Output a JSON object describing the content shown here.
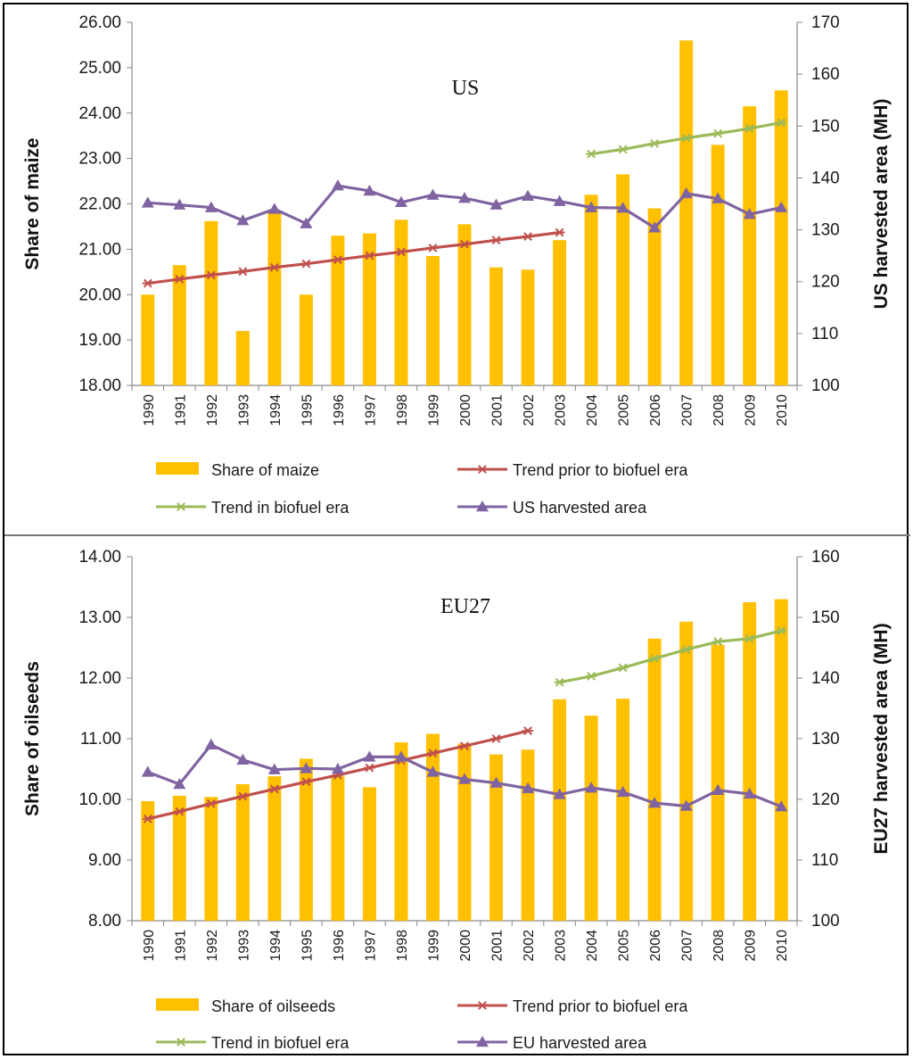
{
  "chart_data": [
    {
      "type": "bar+line",
      "label": "US",
      "categories": [
        "1990",
        "1991",
        "1992",
        "1993",
        "1994",
        "1995",
        "1996",
        "1997",
        "1998",
        "1999",
        "2000",
        "2001",
        "2002",
        "2003",
        "2004",
        "2005",
        "2006",
        "2007",
        "2008",
        "2009",
        "2010"
      ],
      "ylabel": "Share of maize",
      "y2label": "US harvested area (MH)",
      "ylim": [
        18,
        26
      ],
      "y2lim": [
        100,
        170
      ],
      "yticks": [
        "18.00",
        "19.00",
        "20.00",
        "21.00",
        "22.00",
        "23.00",
        "24.00",
        "25.00",
        "26.00"
      ],
      "y2ticks": [
        "100",
        "110",
        "120",
        "130",
        "140",
        "150",
        "160",
        "170"
      ],
      "series": [
        {
          "name": "Share of maize",
          "type": "bar",
          "axis": "left",
          "color": "#FFC000",
          "values": [
            20.0,
            20.65,
            21.62,
            19.2,
            21.82,
            20.0,
            21.3,
            21.35,
            21.65,
            20.85,
            21.55,
            20.6,
            20.55,
            21.2,
            22.2,
            22.65,
            21.9,
            25.6,
            23.3,
            24.15,
            24.5
          ]
        },
        {
          "name": "Trend prior to biofuel era",
          "type": "line",
          "marker": "asterisk",
          "axis": "left",
          "color": "#C0504D",
          "values": [
            20.25,
            20.34,
            20.43,
            20.51,
            20.6,
            20.68,
            20.77,
            20.86,
            20.94,
            21.03,
            21.11,
            21.2,
            21.28,
            21.37,
            null,
            null,
            null,
            null,
            null,
            null,
            null
          ]
        },
        {
          "name": "Trend in biofuel era",
          "type": "line",
          "marker": "asterisk",
          "axis": "left",
          "color": "#9BBB59",
          "values": [
            null,
            null,
            null,
            null,
            null,
            null,
            null,
            null,
            null,
            null,
            null,
            null,
            null,
            null,
            23.1,
            23.2,
            23.33,
            23.45,
            23.55,
            23.66,
            23.79
          ]
        },
        {
          "name": "US harvested area",
          "type": "line",
          "marker": "triangle",
          "axis": "right",
          "color": "#8064A2",
          "values": [
            135.2,
            134.8,
            134.3,
            131.8,
            134.0,
            131.2,
            138.5,
            137.5,
            135.3,
            136.7,
            136.1,
            134.8,
            136.5,
            135.5,
            134.3,
            134.2,
            130.4,
            137.0,
            136.0,
            133.0,
            134.3
          ]
        }
      ]
    },
    {
      "type": "bar+line",
      "label": "EU27",
      "categories": [
        "1990",
        "1991",
        "1992",
        "1993",
        "1994",
        "1995",
        "1996",
        "1997",
        "1998",
        "1999",
        "2000",
        "2001",
        "2002",
        "2003",
        "2004",
        "2005",
        "2006",
        "2007",
        "2008",
        "2009",
        "2010"
      ],
      "ylabel": "Share of oilseeds",
      "y2label": "EU27 harvested area (MH)",
      "ylim": [
        8,
        14
      ],
      "y2lim": [
        100,
        160
      ],
      "yticks": [
        "8.00",
        "9.00",
        "10.00",
        "11.00",
        "12.00",
        "13.00",
        "14.00"
      ],
      "y2ticks": [
        "100",
        "110",
        "120",
        "130",
        "140",
        "150",
        "160"
      ],
      "series": [
        {
          "name": "Share of oilseeds",
          "type": "bar",
          "axis": "left",
          "color": "#FFC000",
          "values": [
            9.97,
            10.06,
            10.04,
            10.25,
            10.38,
            10.67,
            10.38,
            10.2,
            10.94,
            11.08,
            10.92,
            10.74,
            10.82,
            11.65,
            11.38,
            11.66,
            12.65,
            12.93,
            12.55,
            13.25,
            13.3
          ]
        },
        {
          "name": "Trend prior to biofuel era",
          "type": "line",
          "marker": "asterisk",
          "axis": "left",
          "color": "#C0504D",
          "values": [
            9.68,
            9.8,
            9.93,
            10.05,
            10.17,
            10.29,
            10.4,
            10.52,
            10.64,
            10.76,
            10.88,
            11.0,
            11.13,
            null,
            null,
            null,
            null,
            null,
            null,
            null,
            null
          ]
        },
        {
          "name": "Trend in biofuel era",
          "type": "line",
          "marker": "asterisk",
          "axis": "left",
          "color": "#9BBB59",
          "values": [
            null,
            null,
            null,
            null,
            null,
            null,
            null,
            null,
            null,
            null,
            null,
            null,
            null,
            11.93,
            12.03,
            12.17,
            12.32,
            12.47,
            12.6,
            12.65,
            12.78
          ]
        },
        {
          "name": "EU harvested area",
          "type": "line",
          "marker": "triangle",
          "axis": "right",
          "color": "#8064A2",
          "values": [
            124.5,
            122.5,
            129.0,
            126.5,
            124.9,
            125.1,
            125.0,
            127.0,
            127.0,
            124.5,
            123.3,
            122.7,
            121.8,
            120.8,
            121.9,
            121.2,
            119.4,
            118.9,
            121.5,
            120.9,
            118.8
          ]
        }
      ]
    }
  ]
}
